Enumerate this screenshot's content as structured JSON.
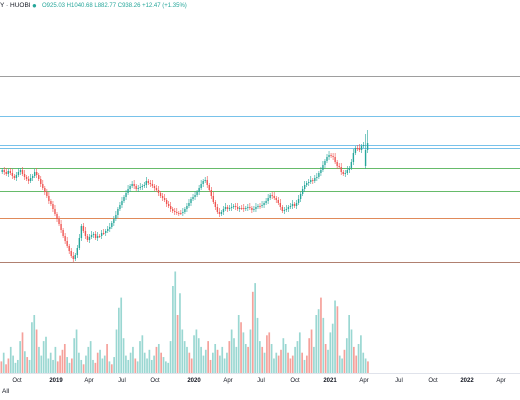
{
  "header": {
    "symbol": "Y · HUOBI",
    "live_icon": "live-dot-icon",
    "ohlc": "O925.03 H1040.68 L882.77 C938.26 +12.47 (+1.35%)"
  },
  "range_tab": "All",
  "colors": {
    "up": "#26a69a",
    "down": "#ef5350",
    "up_volume": "#9ad7d2",
    "down_volume": "#f5a19b",
    "hline_gray": "#9e9e9e",
    "hline_blue": "#78c2ea",
    "hline_green": "#66bb6a",
    "hline_orange": "#e08a5a",
    "hline_brown": "#b08070",
    "axis_text": "#131722"
  },
  "chart_data": {
    "type": "candlestick",
    "title": "",
    "x_ticks": [
      "Oct",
      "2019",
      "Apr",
      "Jul",
      "Oct",
      "2020",
      "Apr",
      "Jul",
      "Oct",
      "2021",
      "Apr",
      "Jul",
      "Oct",
      "2022",
      "Apr"
    ],
    "x_ticks_bold": [
      "2019",
      "2020",
      "2021",
      "2022"
    ],
    "y_axis_visible": false,
    "grid": false,
    "legend": "none",
    "horizontal_lines": [
      {
        "y": 76,
        "color": "gray"
      },
      {
        "y": 116,
        "color": "blue"
      },
      {
        "y": 145,
        "color": "blue"
      },
      {
        "y": 148,
        "color": "blue"
      },
      {
        "y": 168,
        "color": "green"
      },
      {
        "y": 191,
        "color": "green"
      },
      {
        "y": 218,
        "color": "orange"
      },
      {
        "y": 262,
        "color": "brown"
      }
    ],
    "candles_close": [
      170,
      172,
      174,
      171,
      173,
      176,
      178,
      175,
      172,
      170,
      174,
      177,
      179,
      181,
      178,
      176,
      172,
      175,
      179,
      184,
      188,
      192,
      196,
      201,
      204,
      209,
      214,
      219,
      224,
      230,
      236,
      241,
      246,
      251,
      256,
      259,
      255,
      248,
      238,
      226,
      231,
      236,
      240,
      237,
      235,
      234,
      238,
      236,
      236,
      233,
      233,
      231,
      229,
      227,
      223,
      219,
      215,
      209,
      205,
      201,
      197,
      193,
      189,
      186,
      184,
      186,
      189,
      188,
      187,
      186,
      185,
      181,
      183,
      184,
      186,
      188,
      190,
      193,
      196,
      198,
      200,
      204,
      206,
      209,
      211,
      212,
      213,
      213,
      213,
      212,
      209,
      206,
      203,
      199,
      197,
      195,
      192,
      188,
      184,
      181,
      180,
      185,
      190,
      196,
      202,
      207,
      212,
      214,
      212,
      209,
      207,
      209,
      208,
      207,
      206,
      207,
      209,
      208,
      208,
      209,
      208,
      207,
      208,
      210,
      209,
      207,
      206,
      206,
      205,
      203,
      201,
      198,
      195,
      196,
      198,
      200,
      203,
      207,
      211,
      210,
      209,
      207,
      206,
      204,
      206,
      203,
      199,
      194,
      189,
      185,
      183,
      182,
      180,
      181,
      178,
      177,
      173,
      170,
      165,
      161,
      157,
      155,
      156,
      157,
      162,
      166,
      167,
      172,
      174,
      173,
      170,
      168,
      162,
      153,
      148,
      148,
      150,
      146,
      145
    ],
    "volume_samples": [
      8,
      14,
      6,
      10,
      18,
      12,
      7,
      9,
      22,
      28,
      15,
      11,
      9,
      35,
      40,
      30,
      18,
      12,
      22,
      25,
      10,
      14,
      9,
      18,
      8,
      12,
      16,
      20,
      11,
      7,
      10,
      24,
      30,
      14,
      9,
      6,
      12,
      18,
      22,
      9,
      7,
      14,
      16,
      10,
      12,
      20,
      8,
      6,
      11,
      30,
      45,
      52,
      24,
      12,
      9,
      14,
      18,
      10,
      8,
      22,
      26,
      14,
      10,
      16,
      9,
      12,
      18,
      20,
      14,
      11,
      8,
      7,
      22,
      60,
      70,
      40,
      55,
      30,
      22,
      18,
      14,
      10,
      26,
      30,
      24,
      18,
      12,
      16,
      22,
      9,
      14,
      20,
      16,
      12,
      18,
      10,
      14,
      22,
      30,
      24,
      18,
      40,
      35,
      28,
      20,
      18,
      30,
      56,
      62,
      38,
      22,
      18,
      14,
      26,
      28,
      20,
      10,
      14,
      12,
      16,
      24,
      20,
      14,
      10,
      12,
      18,
      22,
      28,
      14,
      9,
      12,
      24,
      30,
      18,
      40,
      44,
      52,
      38,
      20,
      16,
      28,
      34,
      50,
      46,
      12,
      10,
      16,
      24,
      40,
      30,
      18,
      12,
      20,
      26,
      14,
      10,
      8
    ],
    "volume_colors": "mixed up/down"
  }
}
